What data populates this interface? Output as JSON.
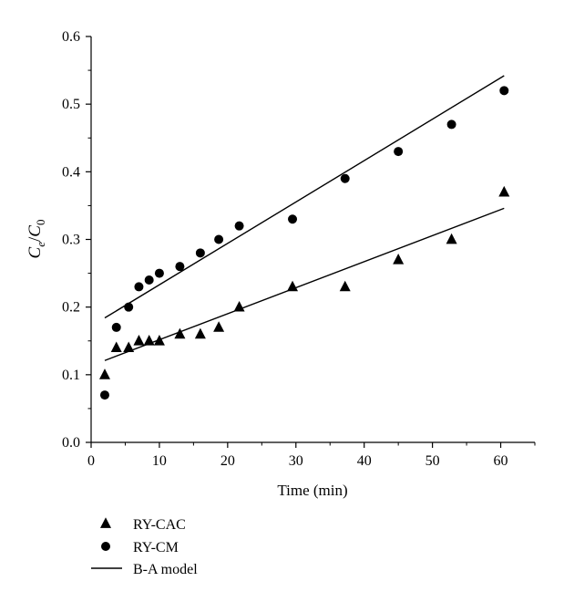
{
  "chart_data": {
    "type": "scatter",
    "xlabel": "Time (min)",
    "ylabel": {
      "base": "C",
      "num_sub": "e",
      "sep": "/",
      "den": "C",
      "den_sub": "0"
    },
    "xlim": [
      0,
      65
    ],
    "ylim": [
      0,
      0.6
    ],
    "x_ticks": [
      0,
      10,
      20,
      30,
      40,
      50,
      60
    ],
    "y_ticks": [
      0.0,
      0.1,
      0.2,
      0.3,
      0.4,
      0.5,
      0.6
    ],
    "x_tick_labels": [
      "0",
      "10",
      "20",
      "30",
      "40",
      "50",
      "60"
    ],
    "y_tick_labels": [
      "0.0",
      "0.1",
      "0.2",
      "0.3",
      "0.4",
      "0.5",
      "0.6"
    ],
    "grid": false,
    "legend_position": "below-left",
    "series": [
      {
        "name": "RY-CAC",
        "marker": "triangle",
        "x": [
          2,
          3.7,
          5.5,
          7,
          8.5,
          10,
          13,
          16,
          18.7,
          21.7,
          29.5,
          37.2,
          45,
          52.8,
          60.5
        ],
        "y": [
          0.1,
          0.14,
          0.14,
          0.15,
          0.15,
          0.15,
          0.16,
          0.16,
          0.17,
          0.2,
          0.23,
          0.23,
          0.27,
          0.3,
          0.37
        ]
      },
      {
        "name": "RY-CM",
        "marker": "circle",
        "x": [
          2,
          3.7,
          5.5,
          7,
          8.5,
          10,
          13,
          16,
          18.7,
          21.7,
          29.5,
          37.2,
          45,
          52.8,
          60.5
        ],
        "y": [
          0.07,
          0.17,
          0.2,
          0.23,
          0.24,
          0.25,
          0.26,
          0.28,
          0.3,
          0.32,
          0.33,
          0.39,
          0.43,
          0.47,
          0.52
        ]
      },
      {
        "name": "B-A model",
        "marker": "line",
        "lines": [
          {
            "x": [
              2,
              60.5
            ],
            "y": [
              0.184,
              0.542
            ]
          },
          {
            "x": [
              2,
              60.5
            ],
            "y": [
              0.121,
              0.346
            ]
          }
        ]
      }
    ]
  }
}
